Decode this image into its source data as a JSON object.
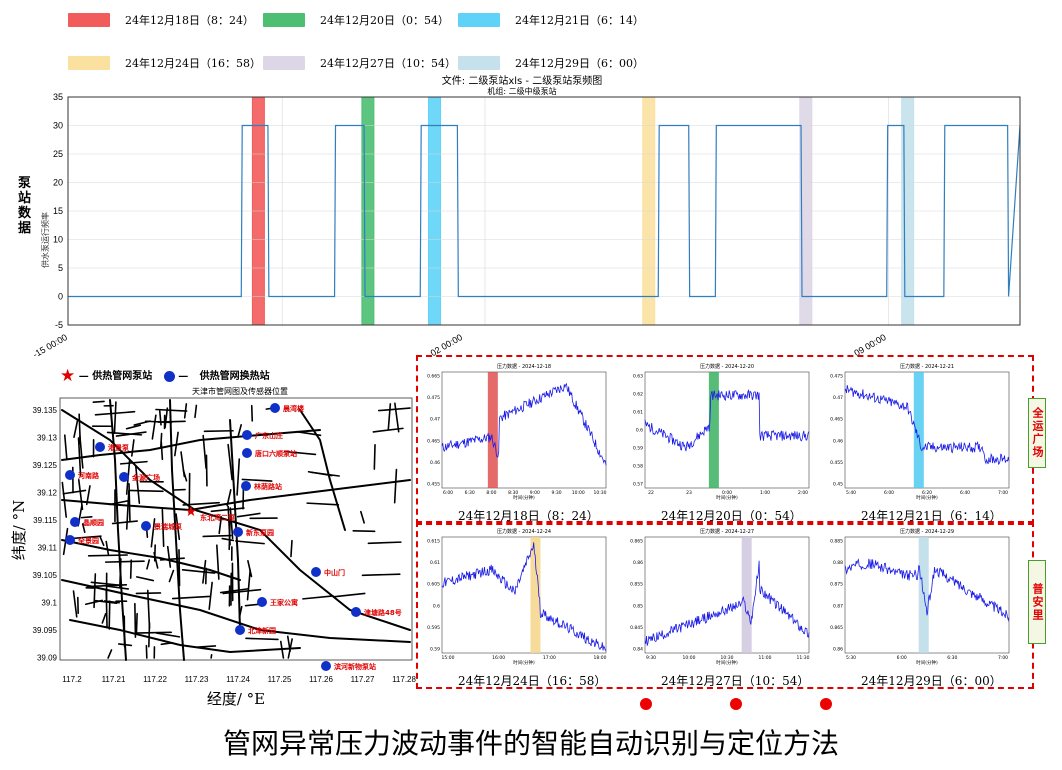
{
  "legend": [
    {
      "label": "24年12月18日（8：24）",
      "color": "#f25b5b"
    },
    {
      "label": "24年12月20日（0：54）",
      "color": "#4dbf73"
    },
    {
      "label": "24年12月21日（6：14）",
      "color": "#5fd3f7"
    },
    {
      "label": "24年12月24日（16：58）",
      "color": "#fbe1a0"
    },
    {
      "label": "24年12月27日（10：54）",
      "color": "#ddd6e6"
    },
    {
      "label": "24年12月29日（6：00）",
      "color": "#c4e1ec"
    }
  ],
  "main_chart": {
    "title_line1": "文件: 二级泵站xls - 二级泵站泵频图",
    "title_line2": "机组: 二级中级泵站",
    "ylabel": "泵站数据",
    "ylabel_sub": "供水泵运行频率",
    "yticks": [
      "35",
      "30",
      "25",
      "20",
      "15",
      "10",
      "5",
      "0",
      "-5"
    ],
    "xticks": [
      "-15 00:00",
      "02 00:00",
      "09 00:00"
    ]
  },
  "chart_data": {
    "type": "line",
    "title": "文件: 二级泵站xls - 二级泵站泵频图",
    "ylabel": "供水泵运行频率",
    "ylim": [
      -5,
      35
    ],
    "x_range": [
      0,
      100
    ],
    "x_unit": "relative time (% of span)",
    "series": [
      {
        "name": "泵频",
        "x": [
          0,
          18.2,
          18.3,
          21.0,
          21.1,
          28.0,
          28.1,
          31.1,
          31.2,
          37.0,
          37.1,
          40.9,
          41.0,
          62.0,
          62.1,
          65.2,
          65.3,
          68.0,
          68.1,
          77.0,
          77.1,
          86.0,
          86.1,
          87.8,
          87.9,
          92.0,
          92.1,
          98.7,
          98.8,
          100
        ],
        "values": [
          0,
          0,
          30,
          30,
          0,
          0,
          30,
          30,
          0,
          0,
          30,
          30,
          0,
          0,
          30,
          30,
          0,
          0,
          30,
          30,
          0,
          0,
          30,
          30,
          0,
          0,
          30,
          30,
          0,
          30
        ]
      }
    ],
    "highlights": [
      {
        "label": "24年12月18日（8：24）",
        "x": 20.0
      },
      {
        "label": "24年12月20日（0：54）",
        "x": 31.5
      },
      {
        "label": "24年12月21日（6：14）",
        "x": 38.5
      },
      {
        "label": "24年12月24日（16：58）",
        "x": 61.0
      },
      {
        "label": "24年12月27日（10：54）",
        "x": 77.5
      },
      {
        "label": "24年12月29日（6：00）",
        "x": 88.2
      }
    ]
  },
  "map": {
    "legend_star": "供热管网泵站",
    "legend_dot": "供热管网换热站",
    "title": "天津市管网图及传感器位置",
    "xlabel": "经度/ °E",
    "ylabel": "纬度/ °N",
    "xticks": [
      "117.2",
      "117.21",
      "117.22",
      "117.23",
      "117.24",
      "117.25",
      "117.26",
      "117.27",
      "117.28"
    ],
    "yticks": [
      "39.135",
      "39.13",
      "39.125",
      "39.12",
      "39.115",
      "39.11",
      "39.105",
      "39.1",
      "39.095",
      "39.09"
    ],
    "pump_label": "东北湾二泵",
    "stations": [
      "晨湾楼",
      "广东山庄",
      "港景泵",
      "唐口六顺泵站",
      "河南路",
      "金源广场",
      "林荫路站",
      "晶顺园",
      "景瑞城泵",
      "新东泵园",
      "全景园",
      "中山门",
      "王家公寓",
      "津塘路48号",
      "北津新园",
      "滨河新物泵站"
    ]
  },
  "thumbs": [
    {
      "title": "压力数据 - 2024-12-18",
      "caption": "24年12月18日（8：24）",
      "color": "#e05050",
      "yticks": [
        "0.665",
        "0.475",
        "0.47",
        "0.465",
        "0.46",
        "0.455"
      ],
      "xticks": [
        "6:00",
        "6:30",
        "8:00",
        "8:30",
        "9:00",
        "9:30",
        "10:00",
        "10:30"
      ],
      "xlabel": "时间(分钟)"
    },
    {
      "title": "压力数据 - 2024-12-20",
      "caption": "24年12月20日（0：54）",
      "color": "#3ab060",
      "yticks": [
        "0.63",
        "0.62",
        "0.61",
        "0.6",
        "0.59",
        "0.58",
        "0.57"
      ],
      "xticks": [
        "22",
        "23",
        "0:00",
        "1:00",
        "2:00"
      ],
      "xlabel": "时间(分钟)"
    },
    {
      "title": "压力数据 - 2024-12-21",
      "caption": "24年12月21日（6：14）",
      "color": "#4fcaf0",
      "yticks": [
        "0.475",
        "0.47",
        "0.465",
        "0.46",
        "0.455",
        "0.45"
      ],
      "xticks": [
        "5:40",
        "6:00",
        "6:20",
        "6:40",
        "7:00"
      ],
      "xlabel": "时间(分钟)"
    },
    {
      "title": "压力数据 - 2024-12-24",
      "caption": "24年12月24日（16：58）",
      "color": "#f5d58a",
      "yticks": [
        "0.615",
        "0.61",
        "0.605",
        "0.6",
        "0.595",
        "0.59"
      ],
      "xticks": [
        "15:00",
        "16:00",
        "17:00",
        "18:00"
      ],
      "xlabel": "时间(分钟)"
    },
    {
      "title": "压力数据 - 2024-12-27",
      "caption": "24年12月27日（10：54）",
      "color": "#cfc6dd",
      "yticks": [
        "0.865",
        "0.86",
        "0.855",
        "0.85",
        "0.845",
        "0.84"
      ],
      "xticks": [
        "9:30",
        "10:00",
        "10:30",
        "11:00",
        "11:30"
      ],
      "xlabel": "时间(分钟)"
    },
    {
      "title": "压力数据 - 2024-12-29",
      "caption": "24年12月29日（6：00）",
      "color": "#b8dbe8",
      "yticks": [
        "0.885",
        "0.88",
        "0.875",
        "0.87",
        "0.865",
        "0.86"
      ],
      "xticks": [
        "5:30",
        "6:00",
        "6:30",
        "7:00"
      ],
      "xlabel": "时间(分钟)"
    }
  ],
  "side_tags": [
    "全运广场",
    "普安里"
  ],
  "footer_title": "管网异常压力波动事件的智能自动识别与定位方法"
}
